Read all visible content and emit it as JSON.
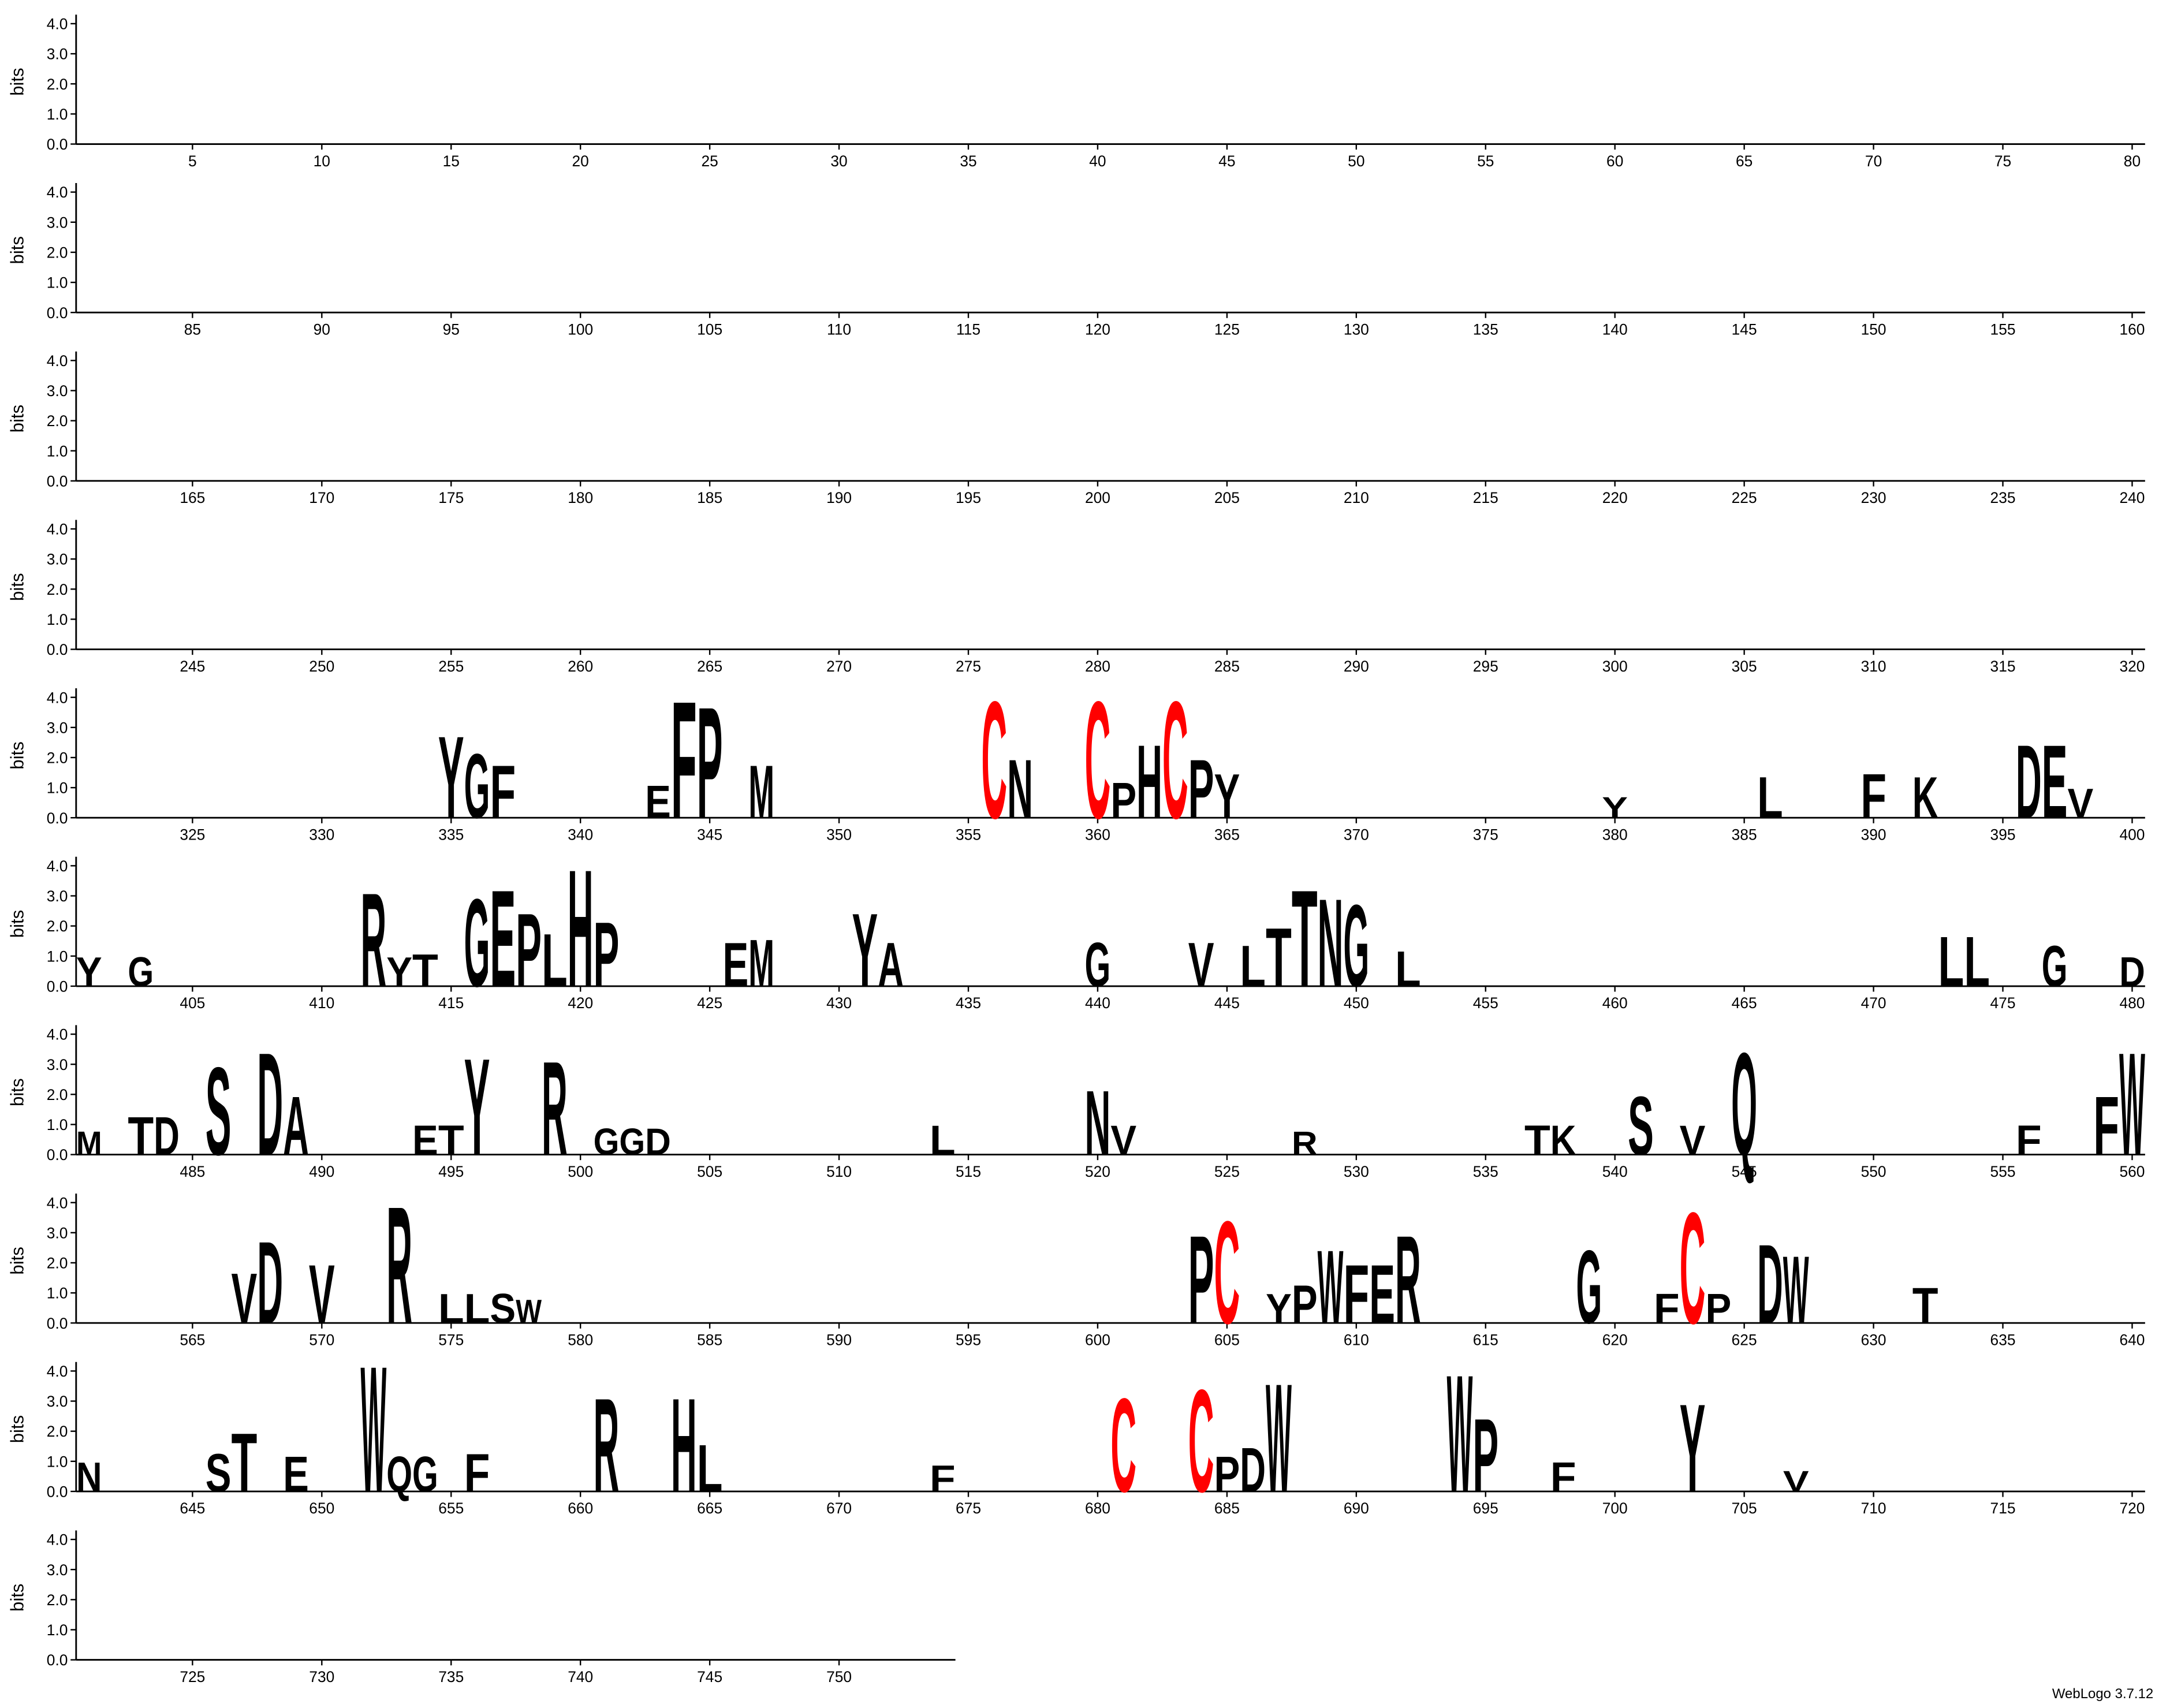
{
  "chart_data": {
    "type": "logo",
    "y_label": "bits",
    "footer": "WebLogo 3.7.12",
    "ylim": [
      0,
      4.3
    ],
    "yticks": [
      {
        "value": 0,
        "label": "0.0"
      },
      {
        "value": 1,
        "label": "1.0"
      },
      {
        "value": 2,
        "label": "2.0"
      },
      {
        "value": 3,
        "label": "3.0"
      },
      {
        "value": 4,
        "label": "4.0"
      }
    ],
    "rows": [
      {
        "xlim": [
          0.5,
          80.5
        ],
        "xticks": [
          5,
          10,
          15,
          20,
          25,
          30,
          35,
          40,
          45,
          50,
          55,
          60,
          65,
          70,
          75,
          80
        ]
      },
      {
        "xlim": [
          80.5,
          160.5
        ],
        "xticks": [
          85,
          90,
          95,
          100,
          105,
          110,
          115,
          120,
          125,
          130,
          135,
          140,
          145,
          150,
          155,
          160
        ]
      },
      {
        "xlim": [
          160.5,
          240.5
        ],
        "xticks": [
          165,
          170,
          175,
          180,
          185,
          190,
          195,
          200,
          205,
          210,
          215,
          220,
          225,
          230,
          235,
          240
        ]
      },
      {
        "xlim": [
          240.5,
          320.5
        ],
        "xticks": [
          245,
          250,
          255,
          260,
          265,
          270,
          275,
          280,
          285,
          290,
          295,
          300,
          305,
          310,
          315,
          320
        ]
      },
      {
        "xlim": [
          320.5,
          400.5
        ],
        "xticks": [
          325,
          330,
          335,
          340,
          345,
          350,
          355,
          360,
          365,
          370,
          375,
          380,
          385,
          390,
          395,
          400
        ]
      },
      {
        "xlim": [
          400.5,
          480.5
        ],
        "xticks": [
          405,
          410,
          415,
          420,
          425,
          430,
          435,
          440,
          445,
          450,
          455,
          460,
          465,
          470,
          475,
          480
        ]
      },
      {
        "xlim": [
          480.5,
          560.5
        ],
        "xticks": [
          485,
          490,
          495,
          500,
          505,
          510,
          515,
          520,
          525,
          530,
          535,
          540,
          545,
          550,
          555,
          560
        ]
      },
      {
        "xlim": [
          560.5,
          640.5
        ],
        "xticks": [
          565,
          570,
          575,
          580,
          585,
          590,
          595,
          600,
          605,
          610,
          615,
          620,
          625,
          630,
          635,
          640
        ]
      },
      {
        "xlim": [
          640.5,
          720.5
        ],
        "xticks": [
          645,
          650,
          655,
          660,
          665,
          670,
          675,
          680,
          685,
          690,
          695,
          700,
          705,
          710,
          715,
          720
        ]
      },
      {
        "xlim": [
          720.5,
          754.5
        ],
        "xticks": [
          725,
          730,
          735,
          740,
          745,
          750
        ]
      }
    ],
    "letters": [
      {
        "position": 335,
        "letter": "Y",
        "bits": 2.8,
        "color": "#000000"
      },
      {
        "position": 336,
        "letter": "G",
        "bits": 2.2,
        "color": "#000000"
      },
      {
        "position": 337,
        "letter": "F",
        "bits": 1.8,
        "color": "#000000"
      },
      {
        "position": 343,
        "letter": "E",
        "bits": 1.1,
        "color": "#000000"
      },
      {
        "position": 344,
        "letter": "F",
        "bits": 4.0,
        "color": "#000000"
      },
      {
        "position": 345,
        "letter": "P",
        "bits": 3.8,
        "color": "#000000"
      },
      {
        "position": 347,
        "letter": "M",
        "bits": 1.8,
        "color": "#000000"
      },
      {
        "position": 356,
        "letter": "C",
        "bits": 4.0,
        "color": "#ff0000"
      },
      {
        "position": 357,
        "letter": "N",
        "bits": 2.0,
        "color": "#000000"
      },
      {
        "position": 360,
        "letter": "C",
        "bits": 4.0,
        "color": "#ff0000"
      },
      {
        "position": 361,
        "letter": "P",
        "bits": 1.2,
        "color": "#000000"
      },
      {
        "position": 362,
        "letter": "H",
        "bits": 2.5,
        "color": "#000000"
      },
      {
        "position": 363,
        "letter": "C",
        "bits": 4.0,
        "color": "#ff0000"
      },
      {
        "position": 364,
        "letter": "P",
        "bits": 2.0,
        "color": "#000000"
      },
      {
        "position": 365,
        "letter": "Y",
        "bits": 1.5,
        "color": "#000000"
      },
      {
        "position": 380,
        "letter": "Y",
        "bits": 0.7,
        "color": "#000000"
      },
      {
        "position": 386,
        "letter": "L",
        "bits": 1.4,
        "color": "#000000"
      },
      {
        "position": 390,
        "letter": "F",
        "bits": 1.5,
        "color": "#000000"
      },
      {
        "position": 392,
        "letter": "K",
        "bits": 1.4,
        "color": "#000000"
      },
      {
        "position": 396,
        "letter": "D",
        "bits": 2.5,
        "color": "#000000"
      },
      {
        "position": 397,
        "letter": "E",
        "bits": 2.5,
        "color": "#000000"
      },
      {
        "position": 398,
        "letter": "V",
        "bits": 1.0,
        "color": "#000000"
      },
      {
        "position": 401,
        "letter": "Y",
        "bits": 1.0,
        "color": "#000000"
      },
      {
        "position": 403,
        "letter": "G",
        "bits": 1.0,
        "color": "#000000"
      },
      {
        "position": 412,
        "letter": "R",
        "bits": 3.2,
        "color": "#000000"
      },
      {
        "position": 413,
        "letter": "Y",
        "bits": 1.0,
        "color": "#000000"
      },
      {
        "position": 414,
        "letter": "T",
        "bits": 1.1,
        "color": "#000000"
      },
      {
        "position": 416,
        "letter": "G",
        "bits": 3.0,
        "color": "#000000"
      },
      {
        "position": 417,
        "letter": "E",
        "bits": 3.3,
        "color": "#000000"
      },
      {
        "position": 418,
        "letter": "P",
        "bits": 2.5,
        "color": "#000000"
      },
      {
        "position": 419,
        "letter": "L",
        "bits": 1.8,
        "color": "#000000"
      },
      {
        "position": 420,
        "letter": "H",
        "bits": 4.0,
        "color": "#000000"
      },
      {
        "position": 421,
        "letter": "P",
        "bits": 2.2,
        "color": "#000000"
      },
      {
        "position": 426,
        "letter": "E",
        "bits": 1.5,
        "color": "#000000"
      },
      {
        "position": 427,
        "letter": "M",
        "bits": 1.6,
        "color": "#000000"
      },
      {
        "position": 431,
        "letter": "Y",
        "bits": 2.5,
        "color": "#000000"
      },
      {
        "position": 432,
        "letter": "A",
        "bits": 1.5,
        "color": "#000000"
      },
      {
        "position": 440,
        "letter": "G",
        "bits": 1.5,
        "color": "#000000"
      },
      {
        "position": 444,
        "letter": "V",
        "bits": 1.5,
        "color": "#000000"
      },
      {
        "position": 446,
        "letter": "L",
        "bits": 1.4,
        "color": "#000000"
      },
      {
        "position": 447,
        "letter": "T",
        "bits": 2.0,
        "color": "#000000"
      },
      {
        "position": 448,
        "letter": "T",
        "bits": 3.3,
        "color": "#000000"
      },
      {
        "position": 449,
        "letter": "N",
        "bits": 3.0,
        "color": "#000000"
      },
      {
        "position": 450,
        "letter": "G",
        "bits": 2.8,
        "color": "#000000"
      },
      {
        "position": 452,
        "letter": "L",
        "bits": 1.2,
        "color": "#000000"
      },
      {
        "position": 473,
        "letter": "L",
        "bits": 1.7,
        "color": "#000000"
      },
      {
        "position": 474,
        "letter": "L",
        "bits": 1.7,
        "color": "#000000"
      },
      {
        "position": 477,
        "letter": "G",
        "bits": 1.4,
        "color": "#000000"
      },
      {
        "position": 480,
        "letter": "D",
        "bits": 1.0,
        "color": "#000000"
      },
      {
        "position": 481,
        "letter": "M",
        "bits": 0.8,
        "color": "#000000"
      },
      {
        "position": 483,
        "letter": "T",
        "bits": 1.3,
        "color": "#000000"
      },
      {
        "position": 484,
        "letter": "D",
        "bits": 1.3,
        "color": "#000000"
      },
      {
        "position": 486,
        "letter": "S",
        "bits": 3.0,
        "color": "#000000"
      },
      {
        "position": 488,
        "letter": "D",
        "bits": 3.5,
        "color": "#000000"
      },
      {
        "position": 489,
        "letter": "A",
        "bits": 2.0,
        "color": "#000000"
      },
      {
        "position": 494,
        "letter": "E",
        "bits": 1.0,
        "color": "#000000"
      },
      {
        "position": 495,
        "letter": "T",
        "bits": 1.0,
        "color": "#000000"
      },
      {
        "position": 496,
        "letter": "Y",
        "bits": 3.3,
        "color": "#000000"
      },
      {
        "position": 499,
        "letter": "R",
        "bits": 3.2,
        "color": "#000000"
      },
      {
        "position": 501,
        "letter": "G",
        "bits": 0.9,
        "color": "#000000"
      },
      {
        "position": 502,
        "letter": "G",
        "bits": 0.9,
        "color": "#000000"
      },
      {
        "position": 503,
        "letter": "D",
        "bits": 0.9,
        "color": "#000000"
      },
      {
        "position": 514,
        "letter": "L",
        "bits": 1.0,
        "color": "#000000"
      },
      {
        "position": 520,
        "letter": "N",
        "bits": 2.2,
        "color": "#000000"
      },
      {
        "position": 521,
        "letter": "V",
        "bits": 1.0,
        "color": "#000000"
      },
      {
        "position": 528,
        "letter": "R",
        "bits": 0.8,
        "color": "#000000"
      },
      {
        "position": 537,
        "letter": "T",
        "bits": 1.0,
        "color": "#000000"
      },
      {
        "position": 538,
        "letter": "K",
        "bits": 1.0,
        "color": "#000000"
      },
      {
        "position": 541,
        "letter": "S",
        "bits": 2.0,
        "color": "#000000"
      },
      {
        "position": 543,
        "letter": "V",
        "bits": 1.0,
        "color": "#000000"
      },
      {
        "position": 545,
        "letter": "Q",
        "bits": 3.5,
        "color": "#000000"
      },
      {
        "position": 556,
        "letter": "F",
        "bits": 1.0,
        "color": "#000000"
      },
      {
        "position": 559,
        "letter": "F",
        "bits": 2.0,
        "color": "#000000"
      },
      {
        "position": 560,
        "letter": "W",
        "bits": 3.5,
        "color": "#000000"
      },
      {
        "position": 567,
        "letter": "V",
        "bits": 1.7,
        "color": "#000000"
      },
      {
        "position": 568,
        "letter": "D",
        "bits": 2.8,
        "color": "#000000"
      },
      {
        "position": 570,
        "letter": "V",
        "bits": 2.0,
        "color": "#000000"
      },
      {
        "position": 573,
        "letter": "R",
        "bits": 4.0,
        "color": "#000000"
      },
      {
        "position": 575,
        "letter": "L",
        "bits": 1.0,
        "color": "#000000"
      },
      {
        "position": 576,
        "letter": "L",
        "bits": 1.0,
        "color": "#000000"
      },
      {
        "position": 577,
        "letter": "S",
        "bits": 1.0,
        "color": "#000000"
      },
      {
        "position": 578,
        "letter": "W",
        "bits": 0.8,
        "color": "#000000"
      },
      {
        "position": 604,
        "letter": "P",
        "bits": 3.0,
        "color": "#000000"
      },
      {
        "position": 605,
        "letter": "C",
        "bits": 3.5,
        "color": "#ff0000"
      },
      {
        "position": 607,
        "letter": "Y",
        "bits": 1.0,
        "color": "#000000"
      },
      {
        "position": 608,
        "letter": "P",
        "bits": 1.3,
        "color": "#000000"
      },
      {
        "position": 609,
        "letter": "W",
        "bits": 2.5,
        "color": "#000000"
      },
      {
        "position": 610,
        "letter": "F",
        "bits": 2.0,
        "color": "#000000"
      },
      {
        "position": 611,
        "letter": "E",
        "bits": 2.0,
        "color": "#000000"
      },
      {
        "position": 612,
        "letter": "R",
        "bits": 3.0,
        "color": "#000000"
      },
      {
        "position": 619,
        "letter": "G",
        "bits": 2.5,
        "color": "#000000"
      },
      {
        "position": 622,
        "letter": "F",
        "bits": 1.0,
        "color": "#000000"
      },
      {
        "position": 623,
        "letter": "C",
        "bits": 3.8,
        "color": "#ff0000"
      },
      {
        "position": 624,
        "letter": "P",
        "bits": 1.0,
        "color": "#000000"
      },
      {
        "position": 626,
        "letter": "D",
        "bits": 2.7,
        "color": "#000000"
      },
      {
        "position": 627,
        "letter": "W",
        "bits": 2.3,
        "color": "#000000"
      },
      {
        "position": 632,
        "letter": "T",
        "bits": 1.2,
        "color": "#000000"
      },
      {
        "position": 641,
        "letter": "N",
        "bits": 1.0,
        "color": "#000000"
      },
      {
        "position": 646,
        "letter": "S",
        "bits": 1.3,
        "color": "#000000"
      },
      {
        "position": 647,
        "letter": "T",
        "bits": 2.0,
        "color": "#000000"
      },
      {
        "position": 649,
        "letter": "E",
        "bits": 1.2,
        "color": "#000000"
      },
      {
        "position": 652,
        "letter": "W",
        "bits": 4.3,
        "color": "#000000"
      },
      {
        "position": 653,
        "letter": "Q",
        "bits": 1.2,
        "color": "#000000"
      },
      {
        "position": 654,
        "letter": "G",
        "bits": 1.2,
        "color": "#000000"
      },
      {
        "position": 656,
        "letter": "F",
        "bits": 1.3,
        "color": "#000000"
      },
      {
        "position": 661,
        "letter": "R",
        "bits": 3.2,
        "color": "#000000"
      },
      {
        "position": 664,
        "letter": "H",
        "bits": 3.2,
        "color": "#000000"
      },
      {
        "position": 665,
        "letter": "L",
        "bits": 1.6,
        "color": "#000000"
      },
      {
        "position": 674,
        "letter": "F",
        "bits": 0.9,
        "color": "#000000"
      },
      {
        "position": 681,
        "letter": "C",
        "bits": 3.2,
        "color": "#ff0000"
      },
      {
        "position": 684,
        "letter": "C",
        "bits": 3.5,
        "color": "#ff0000"
      },
      {
        "position": 685,
        "letter": "P",
        "bits": 1.2,
        "color": "#000000"
      },
      {
        "position": 686,
        "letter": "D",
        "bits": 1.5,
        "color": "#000000"
      },
      {
        "position": 687,
        "letter": "W",
        "bits": 3.7,
        "color": "#000000"
      },
      {
        "position": 694,
        "letter": "W",
        "bits": 4.0,
        "color": "#000000"
      },
      {
        "position": 695,
        "letter": "P",
        "bits": 2.5,
        "color": "#000000"
      },
      {
        "position": 698,
        "letter": "F",
        "bits": 1.0,
        "color": "#000000"
      },
      {
        "position": 703,
        "letter": "Y",
        "bits": 3.0,
        "color": "#000000"
      },
      {
        "position": 707,
        "letter": "V",
        "bits": 0.7,
        "color": "#000000"
      }
    ]
  }
}
